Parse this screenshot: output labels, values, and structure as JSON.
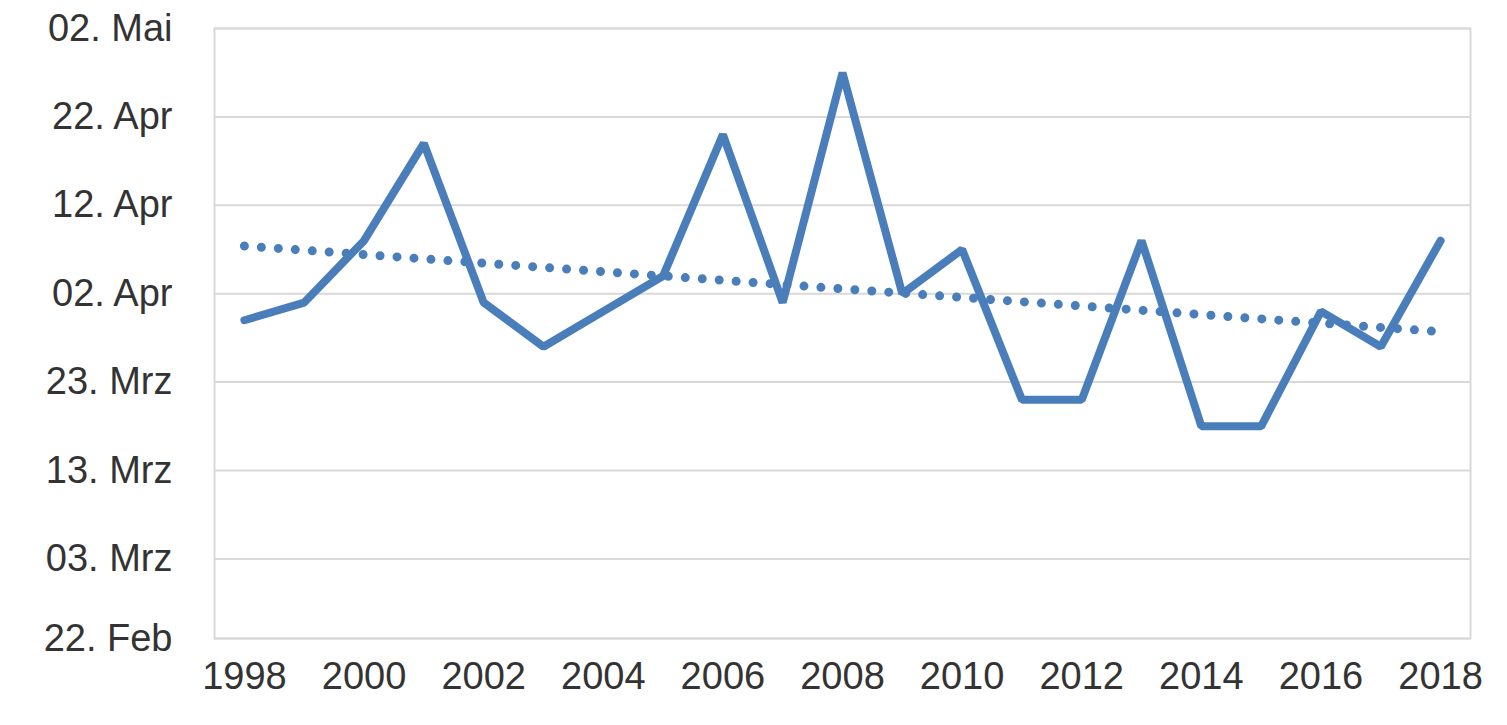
{
  "chart_data": {
    "type": "line",
    "x": [
      1998,
      1999,
      2000,
      2001,
      2002,
      2003,
      2004,
      2005,
      2006,
      2007,
      2008,
      2009,
      2010,
      2011,
      2012,
      2013,
      2014,
      2015,
      2016,
      2017,
      2018
    ],
    "values": [
      89,
      91,
      98,
      109,
      91,
      86,
      90,
      94,
      110,
      91,
      117,
      92,
      97,
      80,
      80,
      98,
      77,
      77,
      90,
      86,
      98
    ],
    "color": "#4a7ebb",
    "line_style": "solid",
    "trend": {
      "x": [
        1998,
        2018
      ],
      "values": [
        97.4,
        87.7
      ],
      "line_style": "dotted",
      "color": "#4a7ebb"
    },
    "xlim": [
      1997.5,
      2018.5
    ],
    "xticks": [
      1998,
      2000,
      2002,
      2004,
      2006,
      2008,
      2010,
      2012,
      2014,
      2016,
      2018
    ],
    "ylim": [
      53,
      122
    ],
    "yticks": [
      {
        "value": 53,
        "label": "22. Feb"
      },
      {
        "value": 62,
        "label": "03. Mrz"
      },
      {
        "value": 72,
        "label": "13. Mrz"
      },
      {
        "value": 82,
        "label": "23. Mrz"
      },
      {
        "value": 92,
        "label": "02. Apr"
      },
      {
        "value": 102,
        "label": "12. Apr"
      },
      {
        "value": 112,
        "label": "22. Apr"
      },
      {
        "value": 122,
        "label": "02. Mai"
      }
    ],
    "grid": true
  }
}
